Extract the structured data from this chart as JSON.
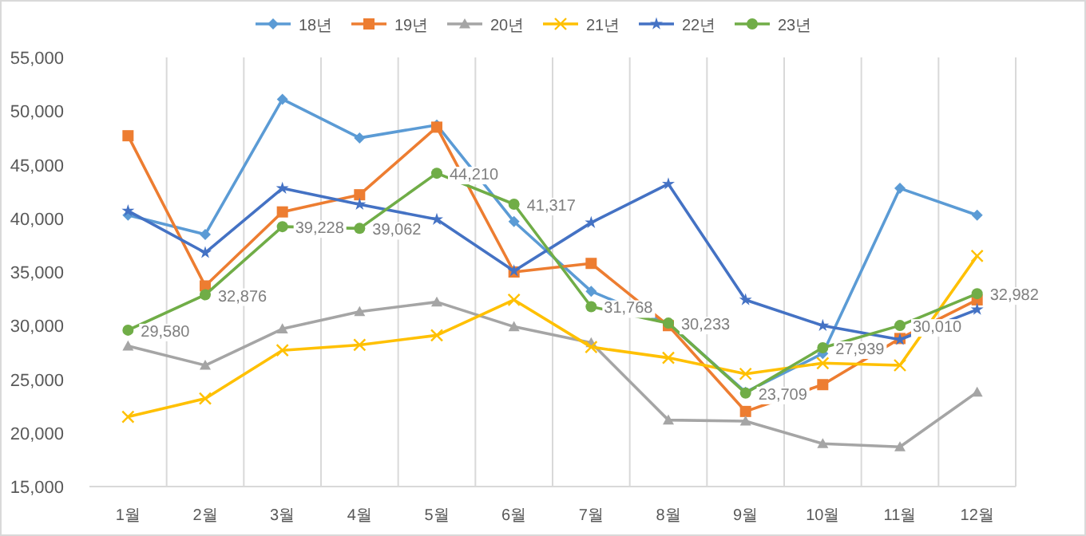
{
  "chart_data": {
    "type": "line",
    "categories": [
      "1월",
      "2월",
      "3월",
      "4월",
      "5월",
      "6월",
      "7월",
      "8월",
      "9월",
      "10월",
      "11월",
      "12월"
    ],
    "ylim": [
      15000,
      55000
    ],
    "yticks": [
      {
        "value": 15000,
        "label": "15,000"
      },
      {
        "value": 20000,
        "label": "20,000"
      },
      {
        "value": 25000,
        "label": "25,000"
      },
      {
        "value": 30000,
        "label": "30,000"
      },
      {
        "value": 35000,
        "label": "35,000"
      },
      {
        "value": 40000,
        "label": "40,000"
      },
      {
        "value": 45000,
        "label": "45,000"
      },
      {
        "value": 50000,
        "label": "50,000"
      },
      {
        "value": 55000,
        "label": "55,000"
      }
    ],
    "grid": "x",
    "legend": "top",
    "series": [
      {
        "name": "18년",
        "color": "#5b9bd5",
        "marker": "diamond",
        "values": [
          40300,
          38500,
          51100,
          47500,
          48700,
          39700,
          33200,
          30200,
          23800,
          27400,
          42800,
          40300
        ]
      },
      {
        "name": "19년",
        "color": "#ed7d31",
        "marker": "square",
        "values": [
          47700,
          33700,
          40600,
          42200,
          48500,
          35000,
          35800,
          30000,
          22000,
          24500,
          28800,
          32400
        ]
      },
      {
        "name": "20년",
        "color": "#a5a5a5",
        "marker": "triangle",
        "values": [
          28100,
          26300,
          29700,
          31300,
          32200,
          29900,
          28400,
          21200,
          21100,
          19000,
          18700,
          23800
        ]
      },
      {
        "name": "21년",
        "color": "#ffc000",
        "marker": "cross",
        "values": [
          21500,
          23200,
          27700,
          28200,
          29100,
          32400,
          28000,
          27000,
          25500,
          26500,
          26300,
          36500
        ]
      },
      {
        "name": "22년",
        "color": "#4472c4",
        "marker": "star",
        "values": [
          40700,
          36800,
          42800,
          41300,
          39900,
          35100,
          39600,
          43200,
          32400,
          30000,
          28700,
          31500
        ]
      },
      {
        "name": "23년",
        "color": "#70ad47",
        "marker": "circle",
        "values": [
          29580,
          32876,
          39228,
          39062,
          44210,
          41317,
          31768,
          30233,
          23709,
          27939,
          30010,
          32982
        ],
        "value_labels": [
          "29,580",
          "32,876",
          "39,228",
          "39,062",
          "44,210",
          "41,317",
          "31,768",
          "30,233",
          "23,709",
          "27,939",
          "30,010",
          "32,982"
        ]
      }
    ]
  }
}
